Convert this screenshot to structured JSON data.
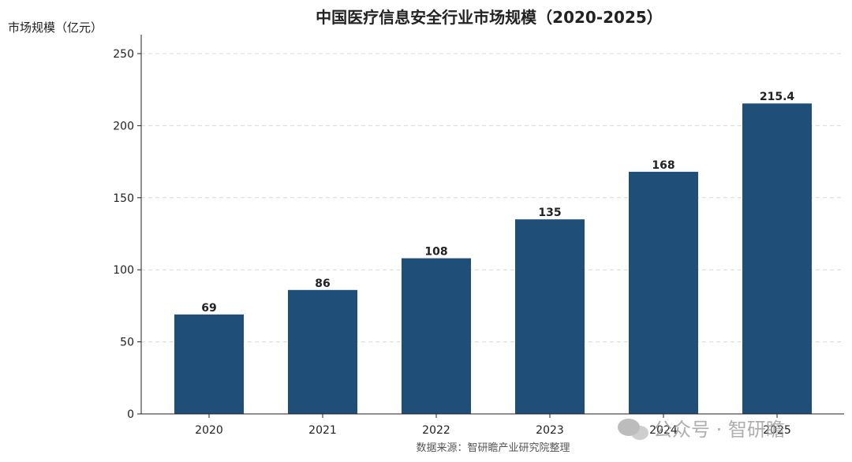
{
  "chart_data": {
    "type": "bar",
    "title": "中国医疗信息安全行业市场规模（2020-2025）",
    "ylabel": "市场规模（亿元）",
    "categories": [
      "2020",
      "2021",
      "2022",
      "2023",
      "2024",
      "2025"
    ],
    "values": [
      69,
      86,
      108,
      135,
      168,
      215.4
    ],
    "value_labels": [
      "69",
      "86",
      "108",
      "135",
      "168",
      "215.4"
    ],
    "ylim": [
      0,
      260
    ],
    "yticks": [
      0,
      50,
      100,
      150,
      200,
      250
    ],
    "grid": "horizontal dashed",
    "bar_color": "#1f4e79"
  },
  "source": "数据来源：智研瞻产业研究院整理",
  "watermark": "公众号 · 智研瞻"
}
